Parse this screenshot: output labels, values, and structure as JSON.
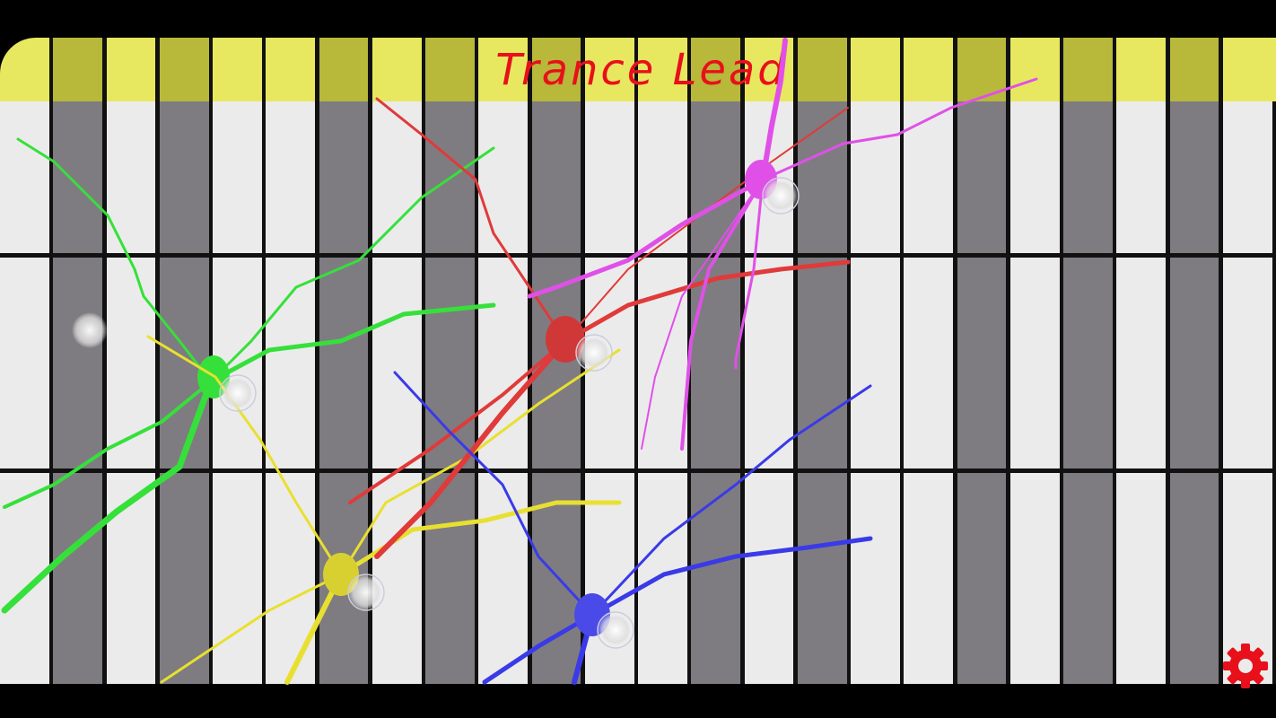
{
  "header": {
    "title": "Trance Lead"
  },
  "grid": {
    "rows": 3,
    "key_pattern": [
      "white",
      "black",
      "white",
      "black",
      "white",
      "white",
      "black",
      "white",
      "black",
      "white",
      "black",
      "white",
      "white",
      "black",
      "white",
      "black",
      "white",
      "white",
      "black",
      "white",
      "black",
      "white",
      "black",
      "white"
    ]
  },
  "colors": {
    "header_light": "#e8e860",
    "header_dark": "#b8b83a",
    "white_key": "#ebebeb",
    "black_key": "#7e7c80",
    "title": "#e8101a",
    "settings": "#e8101a"
  },
  "touches": [
    {
      "color": "#36e03a"
    },
    {
      "color": "#e8e030"
    },
    {
      "color": "#e03a3a"
    },
    {
      "color": "#e050e8"
    },
    {
      "color": "#3a3ae8"
    }
  ],
  "settings": {
    "icon": "gear-icon"
  }
}
